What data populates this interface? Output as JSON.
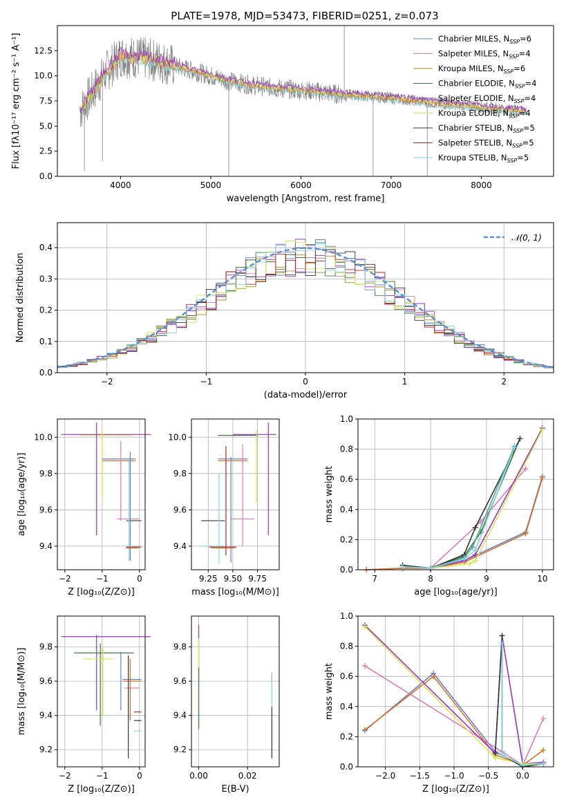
{
  "figure": {
    "title": "PLATE=1978, MJD=53473, FIBERID=0251, z=0.073"
  },
  "legend": {
    "entries": [
      {
        "label": "Chabrier MILES, N",
        "sub": "SSP",
        "suffix": "=6",
        "color": "#5b7fd4"
      },
      {
        "label": "Salpeter MILES, N",
        "sub": "SSP",
        "suffix": "=4",
        "color": "#e07bb5"
      },
      {
        "label": "Kroupa MILES, N",
        "sub": "SSP",
        "suffix": "=6",
        "color": "#b8860b"
      },
      {
        "label": "Chabrier ELODIE, N",
        "sub": "SSP",
        "suffix": "=4",
        "color": "#3b7a3b"
      },
      {
        "label": "Salpeter ELODIE, N",
        "sub": "SSP",
        "suffix": "=4",
        "color": "#9b30c8"
      },
      {
        "label": "Kroupa ELODIE, N",
        "sub": "SSP",
        "suffix": "=4",
        "color": "#d4e84a"
      },
      {
        "label": "Chabrier STELIB, N",
        "sub": "SSP",
        "suffix": "=5",
        "color": "#333333"
      },
      {
        "label": "Salpeter STELIB, N",
        "sub": "SSP",
        "suffix": "=5",
        "color": "#b22222"
      },
      {
        "label": "Kroupa STELIB, N",
        "sub": "SSP",
        "suffix": "=5",
        "color": "#7fd8e0"
      }
    ]
  },
  "chart_data": [
    {
      "id": "spectrum",
      "type": "line",
      "xlabel": "wavelength [Angstrom, rest frame]",
      "ylabel": "Flux [fλ10⁻¹⁷ erg cm⁻² s⁻¹ A⁻¹]",
      "xlim": [
        3300,
        8800
      ],
      "ylim": [
        0,
        15
      ],
      "xticks": [
        4000,
        5000,
        6000,
        7000,
        8000
      ],
      "xtick_labels": [
        "4000",
        "5000",
        "6000",
        "7000",
        "8000"
      ],
      "yticks": [
        0,
        2.5,
        5,
        7.5,
        10,
        12.5
      ],
      "ytick_labels": [
        "0.0",
        "2.5",
        "5.0",
        "7.5",
        "10.0",
        "12.5"
      ],
      "grid": false,
      "legend_position": "upper-right",
      "data_trend": {
        "x": [
          3550,
          3700,
          3850,
          4000,
          4200,
          4400,
          4600,
          4800,
          5000,
          5200,
          5500,
          5800,
          6100,
          6400,
          6700,
          7000,
          7300,
          7600,
          7900,
          8200,
          8500
        ],
        "y": [
          6.5,
          8.5,
          10.5,
          12.0,
          11.8,
          11.5,
          11.0,
          10.5,
          10.0,
          9.5,
          9.0,
          8.7,
          8.5,
          8.2,
          8.0,
          7.8,
          7.5,
          7.2,
          7.0,
          6.7,
          6.5
        ]
      },
      "model_colors": [
        "#7fd8e0",
        "#e07020",
        "#d4e84a",
        "#9b30c8"
      ]
    },
    {
      "id": "residuals",
      "type": "histogram",
      "xlabel": "(data-model)/error",
      "ylabel": "Normed distribution",
      "xlim": [
        -2.5,
        2.5
      ],
      "ylim": [
        0,
        0.48
      ],
      "xticks": [
        -2,
        -1,
        0,
        1,
        2
      ],
      "xtick_labels": [
        "−2",
        "−1",
        "0",
        "1",
        "2"
      ],
      "yticks": [
        0,
        0.1,
        0.2,
        0.3,
        0.4
      ],
      "ytick_labels": [
        "0.0",
        "0.1",
        "0.2",
        "0.3",
        "0.4"
      ],
      "grid": true,
      "legend_position": "upper-right",
      "reference_curve": {
        "label": "𝒩(0, 1)",
        "mean": 0,
        "sigma": 1,
        "color": "#5b8fd8"
      },
      "bin_width": 0.1
    },
    {
      "id": "age-vs-Z",
      "type": "errorbar",
      "xlabel": "Z [log₁₀(Z/Z⊙)]",
      "ylabel": "age  [log₁₀(age/yr)]",
      "xlim": [
        -2.2,
        0.15
      ],
      "ylim": [
        9.27,
        10.1
      ],
      "xticks": [
        -2,
        -1,
        0
      ],
      "xtick_labels": [
        "−2",
        "−1",
        "0"
      ],
      "yticks": [
        9.4,
        9.6,
        9.8,
        10.0
      ],
      "ytick_labels": [
        "9.4",
        "9.6",
        "9.8",
        "10.0"
      ],
      "grid": true,
      "points": [
        {
          "x": -0.9,
          "y": 10.015,
          "xerr": 1.2,
          "yerr": 0.0,
          "color": "#9b30c8"
        },
        {
          "x": -0.9,
          "y": 10.01,
          "xerr": 0.7,
          "yerr": 0.0,
          "color": "#d4e84a"
        },
        {
          "x": -1.15,
          "y": 9.77,
          "xerr": 0.0,
          "yerr": 0.31,
          "color": "#9b30c8"
        },
        {
          "x": -1.0,
          "y": 9.84,
          "xerr": 0.0,
          "yerr": 0.2,
          "color": "#d4e84a"
        },
        {
          "x": -0.55,
          "y": 9.88,
          "xerr": 0.45,
          "yerr": 0.0,
          "color": "#5b7fd4"
        },
        {
          "x": -0.55,
          "y": 9.87,
          "xerr": 0.45,
          "yerr": 0.0,
          "color": "#e07020"
        },
        {
          "x": -0.5,
          "y": 9.76,
          "xerr": 0.0,
          "yerr": 0.22,
          "color": "#e07bb5"
        },
        {
          "x": -0.3,
          "y": 9.55,
          "xerr": 0.3,
          "yerr": 0.0,
          "color": "#e07bb5"
        },
        {
          "x": -0.15,
          "y": 9.54,
          "xerr": 0.2,
          "yerr": 0.0,
          "color": "#333333"
        },
        {
          "x": -0.25,
          "y": 9.62,
          "xerr": 0.0,
          "yerr": 0.3,
          "color": "#5b7fd4"
        },
        {
          "x": -0.28,
          "y": 9.6,
          "xerr": 0.0,
          "yerr": 0.28,
          "color": "#7fd8e0"
        },
        {
          "x": -0.2,
          "y": 9.4,
          "xerr": 0.2,
          "yerr": 0.0,
          "color": "#7fd8e0"
        },
        {
          "x": -0.15,
          "y": 9.395,
          "xerr": 0.2,
          "yerr": 0.0,
          "color": "#b22222"
        },
        {
          "x": -0.2,
          "y": 9.39,
          "xerr": 0.18,
          "yerr": 0.0,
          "color": "#e07020"
        }
      ]
    },
    {
      "id": "age-vs-mass",
      "type": "errorbar",
      "xlabel": "mass [log₁₀(M/M⊙)]",
      "ylabel": "",
      "xlim": [
        9.08,
        9.97
      ],
      "ylim": [
        9.27,
        10.1
      ],
      "xticks": [
        9.25,
        9.5,
        9.75
      ],
      "xtick_labels": [
        "9.25",
        "9.50",
        "9.75"
      ],
      "yticks": [
        9.4,
        9.6,
        9.8,
        10.0
      ],
      "ytick_labels": [
        "9.4",
        "9.6",
        "9.8",
        "10.0"
      ],
      "grid": true,
      "points": [
        {
          "x": 9.72,
          "y": 10.015,
          "xerr": 0.22,
          "yerr": 0.0,
          "color": "#9b30c8"
        },
        {
          "x": 9.55,
          "y": 10.01,
          "xerr": 0.2,
          "yerr": 0.0,
          "color": "#3b7a3b"
        },
        {
          "x": 9.86,
          "y": 9.77,
          "xerr": 0.0,
          "yerr": 0.31,
          "color": "#9b30c8"
        },
        {
          "x": 9.74,
          "y": 9.84,
          "xerr": 0.0,
          "yerr": 0.2,
          "color": "#d4e84a"
        },
        {
          "x": 9.5,
          "y": 9.88,
          "xerr": 0.15,
          "yerr": 0.0,
          "color": "#5b7fd4"
        },
        {
          "x": 9.5,
          "y": 9.87,
          "xerr": 0.15,
          "yerr": 0.0,
          "color": "#e07020"
        },
        {
          "x": 9.6,
          "y": 9.68,
          "xerr": 0.0,
          "yerr": 0.28,
          "color": "#e07bb5"
        },
        {
          "x": 9.6,
          "y": 9.55,
          "xerr": 0.12,
          "yerr": 0.0,
          "color": "#e07bb5"
        },
        {
          "x": 9.3,
          "y": 9.54,
          "xerr": 0.12,
          "yerr": 0.0,
          "color": "#333333"
        },
        {
          "x": 9.43,
          "y": 9.65,
          "xerr": 0.0,
          "yerr": 0.3,
          "color": "#b22222"
        },
        {
          "x": 9.48,
          "y": 9.6,
          "xerr": 0.0,
          "yerr": 0.29,
          "color": "#5b7fd4"
        },
        {
          "x": 9.36,
          "y": 9.55,
          "xerr": 0.0,
          "yerr": 0.25,
          "color": "#7fd8e0"
        },
        {
          "x": 9.3,
          "y": 9.4,
          "xerr": 0.12,
          "yerr": 0.0,
          "color": "#7fd8e0"
        },
        {
          "x": 9.4,
          "y": 9.395,
          "xerr": 0.14,
          "yerr": 0.0,
          "color": "#b22222"
        },
        {
          "x": 9.4,
          "y": 9.39,
          "xerr": 0.12,
          "yerr": 0.0,
          "color": "#e07020"
        }
      ]
    },
    {
      "id": "weight-vs-age",
      "type": "line",
      "xlabel": "age  [log₁₀(age/yr)]",
      "ylabel": "mass weight",
      "xlim": [
        6.7,
        10.2
      ],
      "ylim": [
        0,
        1.0
      ],
      "xticks": [
        7,
        8,
        9,
        10
      ],
      "xtick_labels": [
        "7",
        "8",
        "9",
        "10"
      ],
      "yticks": [
        0,
        0.2,
        0.4,
        0.6,
        0.8,
        1.0
      ],
      "ytick_labels": [
        "0.0",
        "0.2",
        "0.4",
        "0.6",
        "0.8",
        "1.0"
      ],
      "grid": true,
      "series": [
        {
          "x": [
            6.85,
            7.5,
            8.0,
            8.6,
            9.7,
            10.0
          ],
          "y": [
            0.0,
            0.01,
            0.01,
            0.06,
            0.25,
            0.62
          ],
          "color": "#5b7fd4"
        },
        {
          "x": [
            6.85,
            7.5,
            8.0,
            8.9,
            9.7
          ],
          "y": [
            0.0,
            0.01,
            0.01,
            0.32,
            0.67
          ],
          "color": "#e07bb5"
        },
        {
          "x": [
            6.85,
            7.5,
            8.0,
            8.6,
            9.7,
            10.0
          ],
          "y": [
            0.0,
            0.01,
            0.01,
            0.05,
            0.24,
            0.61
          ],
          "color": "#e07020"
        },
        {
          "x": [
            7.5,
            8.0,
            8.6,
            8.9,
            9.6
          ],
          "y": [
            0.03,
            0.01,
            0.09,
            0.25,
            0.87
          ],
          "color": "#3b7a3b"
        },
        {
          "x": [
            7.5,
            8.0,
            8.6,
            8.8,
            10.0
          ],
          "y": [
            0.02,
            0.01,
            0.06,
            0.1,
            0.94
          ],
          "color": "#9b30c8"
        },
        {
          "x": [
            7.5,
            8.0,
            8.7,
            8.8,
            10.0
          ],
          "y": [
            0.02,
            0.01,
            0.04,
            0.06,
            0.93
          ],
          "color": "#d4e84a"
        },
        {
          "x": [
            7.5,
            8.0,
            8.6,
            8.8,
            9.6
          ],
          "y": [
            0.03,
            0.01,
            0.1,
            0.28,
            0.87
          ],
          "color": "#333333"
        },
        {
          "x": [
            7.5,
            8.0,
            8.6,
            8.75,
            9.5
          ],
          "y": [
            0.02,
            0.01,
            0.08,
            0.15,
            0.82
          ],
          "color": "#5f9ea0"
        },
        {
          "x": [
            7.5,
            8.0,
            8.6,
            8.8,
            9.5
          ],
          "y": [
            0.02,
            0.01,
            0.07,
            0.13,
            0.81
          ],
          "color": "#7fd8e0"
        }
      ]
    },
    {
      "id": "mass-vs-Z",
      "type": "errorbar",
      "xlabel": "Z [log₁₀(Z/Z⊙)]",
      "ylabel": "mass [log₁₀(M/M⊙)]",
      "xlim": [
        -2.2,
        0.15
      ],
      "ylim": [
        9.1,
        9.98
      ],
      "xticks": [
        -2,
        -1,
        0
      ],
      "xtick_labels": [
        "−2",
        "−1",
        "0"
      ],
      "yticks": [
        9.2,
        9.4,
        9.6,
        9.8
      ],
      "ytick_labels": [
        "9.2",
        "9.4",
        "9.6",
        "9.8"
      ],
      "grid": true,
      "points": [
        {
          "x": -0.9,
          "y": 9.86,
          "xerr": 1.2,
          "yerr": 0.0,
          "color": "#9b30c8"
        },
        {
          "x": -1.15,
          "y": 9.65,
          "xerr": 0.0,
          "yerr": 0.22,
          "color": "#9b30c8"
        },
        {
          "x": -0.95,
          "y": 9.765,
          "xerr": 0.8,
          "yerr": 0.0,
          "color": "#3b7a3b"
        },
        {
          "x": -1.05,
          "y": 9.58,
          "xerr": 0.0,
          "yerr": 0.24,
          "color": "#3b7a3b"
        },
        {
          "x": -1.1,
          "y": 9.73,
          "xerr": 0.4,
          "yerr": 0.0,
          "color": "#d4e84a"
        },
        {
          "x": -0.98,
          "y": 9.6,
          "xerr": 0.0,
          "yerr": 0.2,
          "color": "#d4e84a"
        },
        {
          "x": -0.5,
          "y": 9.6,
          "xerr": 0.0,
          "yerr": 0.17,
          "color": "#5b7fd4"
        },
        {
          "x": -0.2,
          "y": 9.61,
          "xerr": 0.25,
          "yerr": 0.0,
          "color": "#5b7fd4"
        },
        {
          "x": -0.2,
          "y": 9.6,
          "xerr": 0.25,
          "yerr": 0.0,
          "color": "#e07020"
        },
        {
          "x": -0.2,
          "y": 9.56,
          "xerr": 0.2,
          "yerr": 0.0,
          "color": "#e07bb5"
        },
        {
          "x": -0.25,
          "y": 9.55,
          "xerr": 0.0,
          "yerr": 0.18,
          "color": "#e07020"
        },
        {
          "x": -0.05,
          "y": 9.42,
          "xerr": 0.1,
          "yerr": 0.0,
          "color": "#b22222"
        },
        {
          "x": -0.05,
          "y": 9.37,
          "xerr": 0.1,
          "yerr": 0.0,
          "color": "#333333"
        },
        {
          "x": -0.05,
          "y": 9.31,
          "xerr": 0.1,
          "yerr": 0.0,
          "color": "#7fd8e0"
        },
        {
          "x": -0.3,
          "y": 9.45,
          "xerr": 0.0,
          "yerr": 0.3,
          "color": "#333333"
        }
      ]
    },
    {
      "id": "mass-vs-EBV",
      "type": "errorbar",
      "xlabel": "E(B-V)",
      "ylabel": "",
      "xlim": [
        -0.003,
        0.033
      ],
      "ylim": [
        9.1,
        9.98
      ],
      "xticks": [
        0.0,
        0.02
      ],
      "xtick_labels": [
        "0.00",
        "0.02"
      ],
      "yticks": [
        9.2,
        9.4,
        9.6,
        9.8
      ],
      "ytick_labels": [
        "9.2",
        "9.4",
        "9.6",
        "9.8"
      ],
      "grid": true,
      "points": [
        {
          "x": 0.0,
          "y": 9.78,
          "xerr": 0.0,
          "yerr": 0.15,
          "color": "#9b30c8"
        },
        {
          "x": 0.0,
          "y": 9.6,
          "xerr": 0.0,
          "yerr": 0.25,
          "color": "#d4e84a"
        },
        {
          "x": 0.0,
          "y": 9.5,
          "xerr": 0.0,
          "yerr": 0.18,
          "color": "#3b7a3b"
        },
        {
          "x": 0.03,
          "y": 9.62,
          "xerr": 0.0,
          "yerr": 0.03,
          "color": "#b22222"
        },
        {
          "x": 0.03,
          "y": 9.4,
          "xerr": 0.0,
          "yerr": 0.25,
          "color": "#7fd8e0"
        },
        {
          "x": 0.03,
          "y": 9.3,
          "xerr": 0.0,
          "yerr": 0.15,
          "color": "#333333"
        }
      ]
    },
    {
      "id": "weight-vs-Z",
      "type": "line",
      "xlabel": "Z [log₁₀(Z/Z⊙)]",
      "ylabel": "mass weight",
      "xlim": [
        -2.4,
        0.45
      ],
      "ylim": [
        0,
        1.0
      ],
      "xticks": [
        -2.0,
        -1.5,
        -1.0,
        -0.5,
        0.0
      ],
      "xtick_labels": [
        "−2.0",
        "−1.5",
        "−1.0",
        "−0.5",
        "0.0"
      ],
      "yticks": [
        0,
        0.2,
        0.4,
        0.6,
        0.8,
        1.0
      ],
      "ytick_labels": [
        "0.0",
        "0.2",
        "0.4",
        "0.6",
        "0.8",
        "1.0"
      ],
      "grid": true,
      "series": [
        {
          "x": [
            -2.3,
            -1.3,
            -0.4,
            0.0,
            0.3
          ],
          "y": [
            0.24,
            0.62,
            0.1,
            0.01,
            0.02
          ],
          "color": "#5b7fd4"
        },
        {
          "x": [
            -2.3,
            -0.3,
            0.0,
            0.3
          ],
          "y": [
            0.67,
            0.1,
            0.01,
            0.32
          ],
          "color": "#e07bb5"
        },
        {
          "x": [
            -2.3,
            -1.3,
            -0.4,
            0.0,
            0.3
          ],
          "y": [
            0.245,
            0.6,
            0.08,
            0.01,
            0.11
          ],
          "color": "#e07020"
        },
        {
          "x": [
            -2.3,
            -0.4,
            -0.3,
            0.0,
            0.3
          ],
          "y": [
            0.94,
            0.09,
            0.87,
            0.02,
            0.03
          ],
          "color": "#9b30c8"
        },
        {
          "x": [
            -2.3,
            -0.4,
            0.0,
            0.3
          ],
          "y": [
            0.93,
            0.06,
            0.02,
            0.02
          ],
          "color": "#d4e84a"
        },
        {
          "x": [
            -0.4,
            -0.3,
            -0.3,
            0.0,
            0.3
          ],
          "y": [
            0.09,
            0.87,
            0.08,
            0.0,
            0.02
          ],
          "color": "#333333"
        },
        {
          "x": [
            -0.3,
            -0.3,
            0.0,
            0.3
          ],
          "y": [
            0.82,
            0.08,
            0.01,
            0.02
          ],
          "color": "#7fd8e0"
        }
      ]
    }
  ]
}
